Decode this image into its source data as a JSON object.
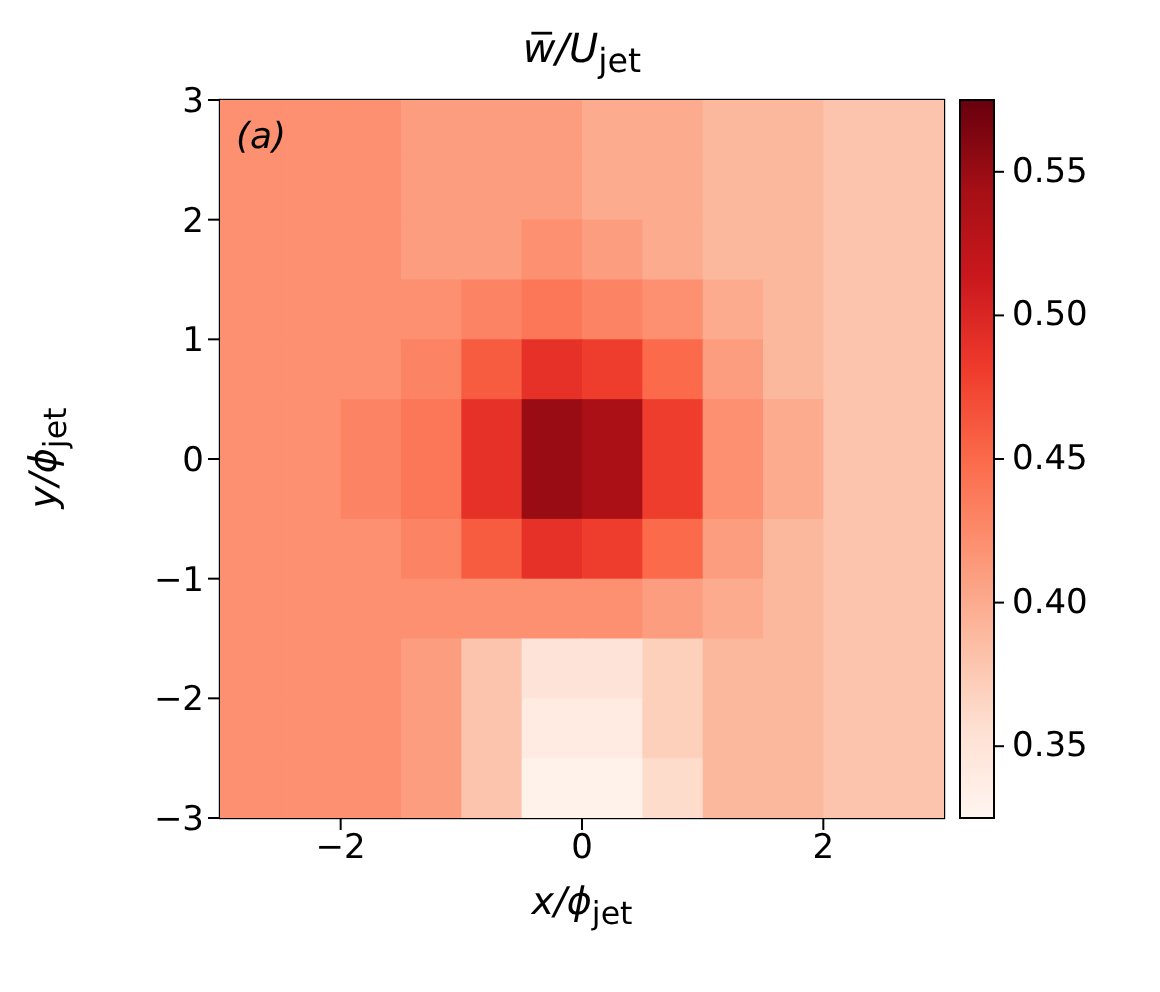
{
  "chart_data": {
    "type": "heatmap",
    "title": "w̅/U$_{jet}$",
    "xlabel": "x/ϕ$_{jet}$",
    "ylabel": "y/ϕ$_{jet}$",
    "annotations": [
      "(a)"
    ],
    "x": [
      -2.75,
      -2.25,
      -1.75,
      -1.25,
      -0.75,
      -0.25,
      0.25,
      0.75,
      1.25,
      1.75,
      2.25,
      2.75
    ],
    "y": [
      2.75,
      2.25,
      1.75,
      1.25,
      0.75,
      0.25,
      -0.25,
      -0.75,
      -1.25,
      -1.75,
      -2.25,
      -2.75
    ],
    "cells": [
      [
        0.42,
        0.42,
        0.42,
        0.41,
        0.41,
        0.41,
        0.4,
        0.4,
        0.39,
        0.39,
        0.38,
        0.38
      ],
      [
        0.42,
        0.42,
        0.42,
        0.41,
        0.41,
        0.41,
        0.4,
        0.4,
        0.39,
        0.39,
        0.38,
        0.38
      ],
      [
        0.42,
        0.42,
        0.42,
        0.41,
        0.41,
        0.42,
        0.41,
        0.4,
        0.39,
        0.39,
        0.38,
        0.38
      ],
      [
        0.42,
        0.42,
        0.42,
        0.42,
        0.43,
        0.44,
        0.43,
        0.42,
        0.4,
        0.39,
        0.38,
        0.38
      ],
      [
        0.42,
        0.42,
        0.42,
        0.43,
        0.46,
        0.49,
        0.48,
        0.45,
        0.41,
        0.39,
        0.38,
        0.38
      ],
      [
        0.42,
        0.42,
        0.43,
        0.44,
        0.49,
        0.55,
        0.54,
        0.48,
        0.42,
        0.4,
        0.38,
        0.38
      ],
      [
        0.42,
        0.42,
        0.43,
        0.44,
        0.49,
        0.55,
        0.54,
        0.48,
        0.42,
        0.4,
        0.38,
        0.38
      ],
      [
        0.42,
        0.42,
        0.42,
        0.43,
        0.46,
        0.49,
        0.48,
        0.45,
        0.41,
        0.39,
        0.38,
        0.38
      ],
      [
        0.42,
        0.42,
        0.42,
        0.42,
        0.42,
        0.42,
        0.42,
        0.41,
        0.4,
        0.39,
        0.38,
        0.38
      ],
      [
        0.42,
        0.42,
        0.42,
        0.41,
        0.38,
        0.35,
        0.35,
        0.37,
        0.39,
        0.39,
        0.38,
        0.38
      ],
      [
        0.42,
        0.42,
        0.42,
        0.41,
        0.38,
        0.34,
        0.34,
        0.37,
        0.39,
        0.39,
        0.38,
        0.38
      ],
      [
        0.42,
        0.42,
        0.42,
        0.41,
        0.38,
        0.33,
        0.33,
        0.36,
        0.39,
        0.39,
        0.38,
        0.38
      ]
    ],
    "xlim": [
      -3,
      3
    ],
    "xticks": [
      {
        "value": -2,
        "label": "−2"
      },
      0,
      2
    ],
    "ylim": [
      -3,
      3
    ],
    "yticks": [
      {
        "value": -3,
        "label": "−3"
      },
      {
        "value": -2,
        "label": "−2"
      },
      {
        "value": -1,
        "label": "−1"
      },
      0,
      1,
      2,
      3
    ],
    "clim": [
      0.325,
      0.575
    ],
    "cticks": [
      {
        "value": 0.35,
        "label": "0.35"
      },
      {
        "value": 0.4,
        "label": "0.40"
      },
      {
        "value": 0.45,
        "label": "0.45"
      },
      {
        "value": 0.5,
        "label": "0.50"
      },
      {
        "value": 0.55,
        "label": "0.55"
      }
    ]
  }
}
